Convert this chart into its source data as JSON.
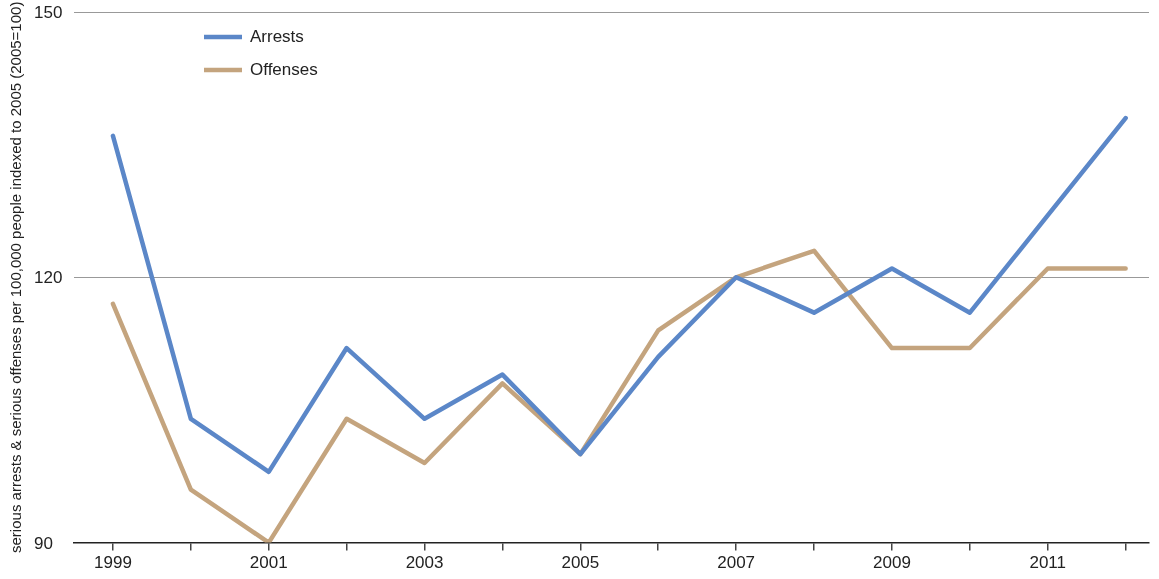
{
  "chart_data": {
    "type": "line",
    "ylabel": "serious arrests & serious offenses per 100,000 people indexed to 2005 (2005=100)",
    "x": [
      1999,
      2000,
      2001,
      2002,
      2003,
      2004,
      2005,
      2006,
      2007,
      2008,
      2009,
      2010,
      2011,
      2012
    ],
    "series": [
      {
        "name": "Arrests",
        "color": "#5b87c8",
        "values": [
          136,
          104,
          98,
          112,
          104,
          109,
          100,
          111,
          120,
          116,
          121,
          116,
          127,
          138
        ]
      },
      {
        "name": "Offenses",
        "color": "#c4a47e",
        "values": [
          117,
          96,
          90,
          104,
          99,
          108,
          100,
          114,
          120,
          123,
          112,
          112,
          121,
          121
        ]
      }
    ],
    "xlim": [
      1998.5,
      2012.3
    ],
    "xticks": [
      1999,
      {
        "value": 2000,
        "label": null
      },
      2001,
      {
        "value": 2002,
        "label": null
      },
      2003,
      {
        "value": 2004,
        "label": null
      },
      2005,
      {
        "value": 2006,
        "label": null
      },
      2007,
      {
        "value": 2008,
        "label": null
      },
      2009,
      {
        "value": 2010,
        "label": null
      },
      2011,
      {
        "value": 2012,
        "label": null
      }
    ],
    "ylim": [
      90,
      150
    ],
    "yticks": [
      90,
      120,
      150
    ],
    "grid": "y",
    "legend": "top left",
    "marker": "none",
    "line_style": "solid"
  }
}
